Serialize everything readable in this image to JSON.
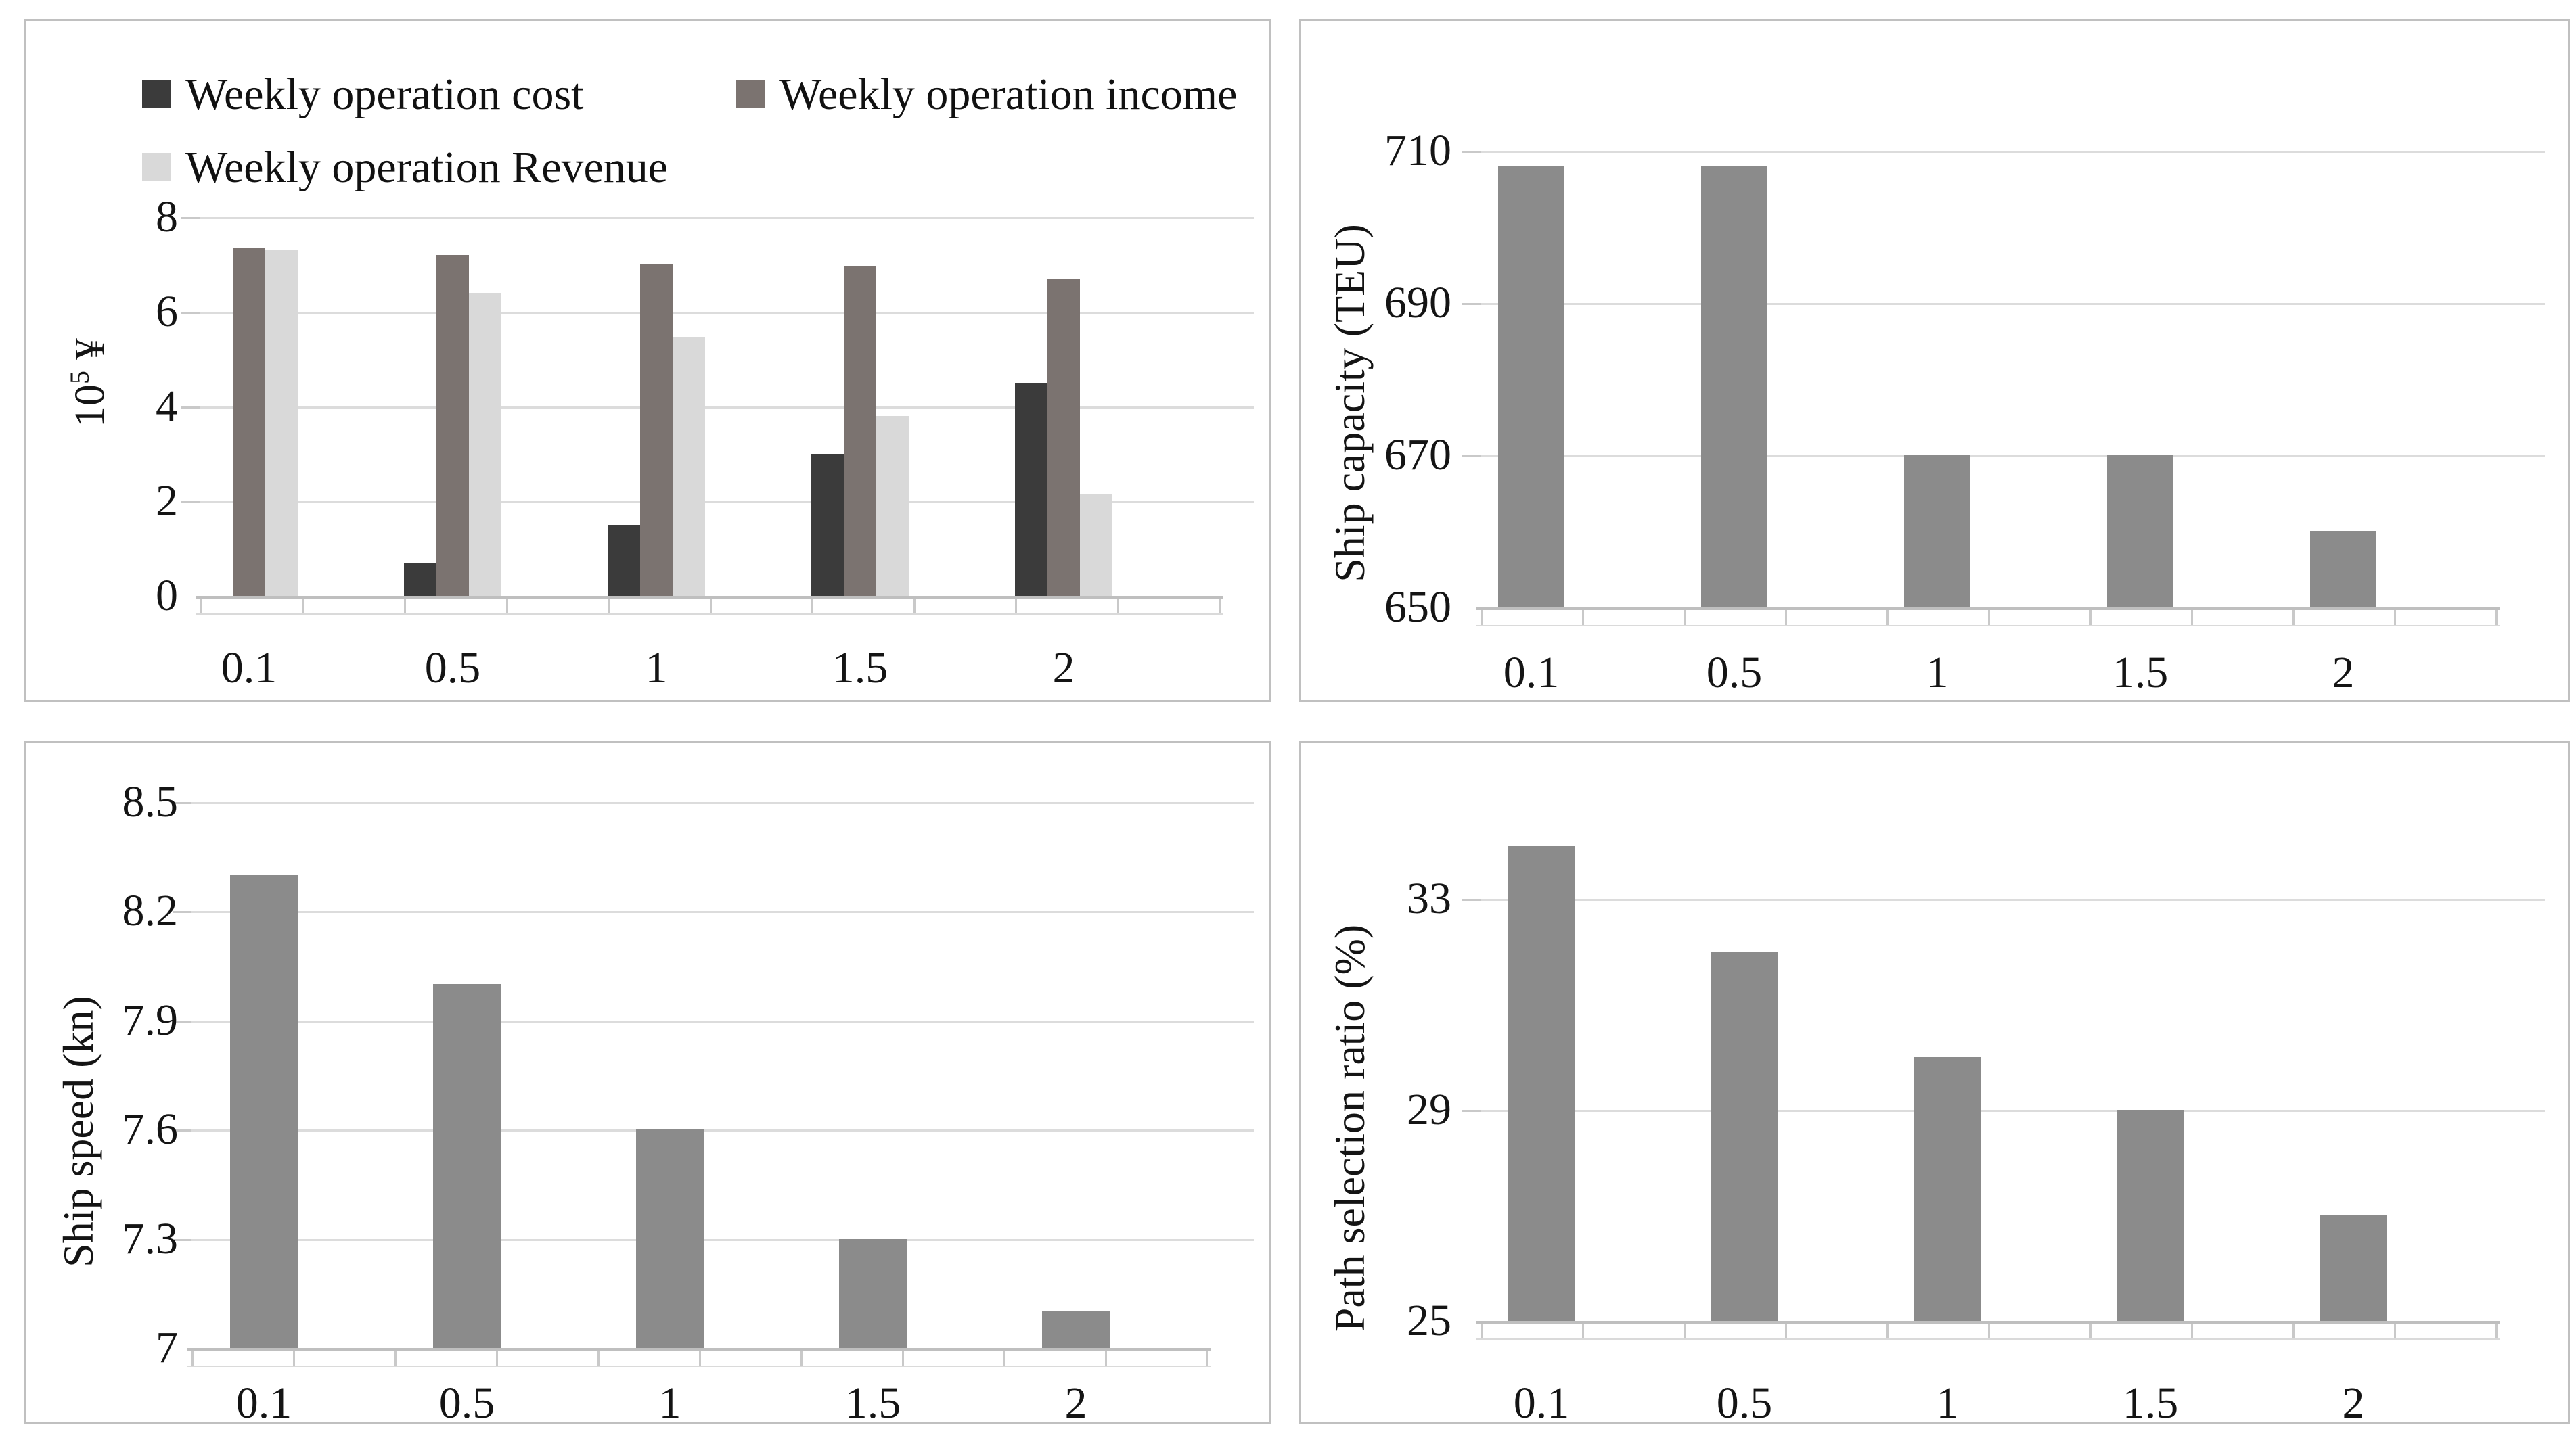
{
  "page": {
    "background": "#ffffff",
    "description_colors": {
      "panel_border": "#c0c0c0",
      "gridline": "#dcdcdc",
      "axis_line": "#bfbfbf",
      "text": "#141414"
    }
  },
  "chart_data": [
    {
      "id": "weekly-operation-finance",
      "type": "bar",
      "title": "",
      "categories": [
        "0.1",
        "0.5",
        "1",
        "1.5",
        "2"
      ],
      "series": [
        {
          "name": "Weekly operation cost",
          "color": "#3b3b3b",
          "values": [
            0,
            0.7,
            1.5,
            3.0,
            4.5
          ]
        },
        {
          "name": "Weekly operation income",
          "color": "#7b7370",
          "values": [
            7.35,
            7.2,
            7.0,
            6.95,
            6.7
          ]
        },
        {
          "name": "Weekly operation Revenue",
          "color": "#d9d9d9",
          "values": [
            7.3,
            6.4,
            5.45,
            3.8,
            2.15
          ]
        }
      ],
      "xlabel": "",
      "ylabel": "10⁵ ¥",
      "ylabel_parts": {
        "pre": "10",
        "sup": "5",
        "post": " ¥"
      },
      "yticks": [
        0,
        2,
        4,
        6,
        8
      ],
      "ytick_labels": [
        "0",
        "2",
        "4",
        "6",
        "8"
      ],
      "ylim": [
        0,
        8
      ],
      "grid": true,
      "legend_position": "top, two rows"
    },
    {
      "id": "ship-capacity",
      "type": "bar",
      "title": "",
      "categories": [
        "0.1",
        "0.5",
        "1",
        "1.5",
        "2"
      ],
      "series": [
        {
          "name": "Ship capacity",
          "color": "#8b8b8b",
          "values": [
            708,
            708,
            670,
            670,
            660
          ]
        }
      ],
      "xlabel": "",
      "ylabel": "Ship capacity (TEU)",
      "yticks": [
        650,
        670,
        690,
        710
      ],
      "ytick_labels": [
        "650",
        "670",
        "690",
        "710"
      ],
      "ylim": [
        650,
        710
      ],
      "grid": true,
      "legend_position": "none"
    },
    {
      "id": "ship-speed",
      "type": "bar",
      "title": "",
      "categories": [
        "0.1",
        "0.5",
        "1",
        "1.5",
        "2"
      ],
      "series": [
        {
          "name": "Ship speed",
          "color": "#8b8b8b",
          "values": [
            8.3,
            8.0,
            7.6,
            7.3,
            7.1
          ]
        }
      ],
      "xlabel": "",
      "ylabel": "Ship speed (kn)",
      "yticks": [
        7,
        7.3,
        7.6,
        7.9,
        8.2,
        8.5
      ],
      "ytick_labels": [
        "7",
        "7.3",
        "7.6",
        "7.9",
        "8.2",
        "8.5"
      ],
      "ylim": [
        7,
        8.5
      ],
      "grid": true,
      "legend_position": "none"
    },
    {
      "id": "path-selection-ratio",
      "type": "bar",
      "title": "",
      "categories": [
        "0.1",
        "0.5",
        "1",
        "1.5",
        "2"
      ],
      "series": [
        {
          "name": "Path selection ratio",
          "color": "#8b8b8b",
          "values": [
            34,
            32,
            30,
            29,
            27
          ]
        }
      ],
      "xlabel": "",
      "ylabel": "Path selection ratio (%)",
      "yticks": [
        25,
        29,
        33
      ],
      "ytick_labels": [
        "25",
        "29",
        "33"
      ],
      "ylim": [
        25,
        33
      ],
      "grid": true,
      "legend_position": "none"
    }
  ]
}
